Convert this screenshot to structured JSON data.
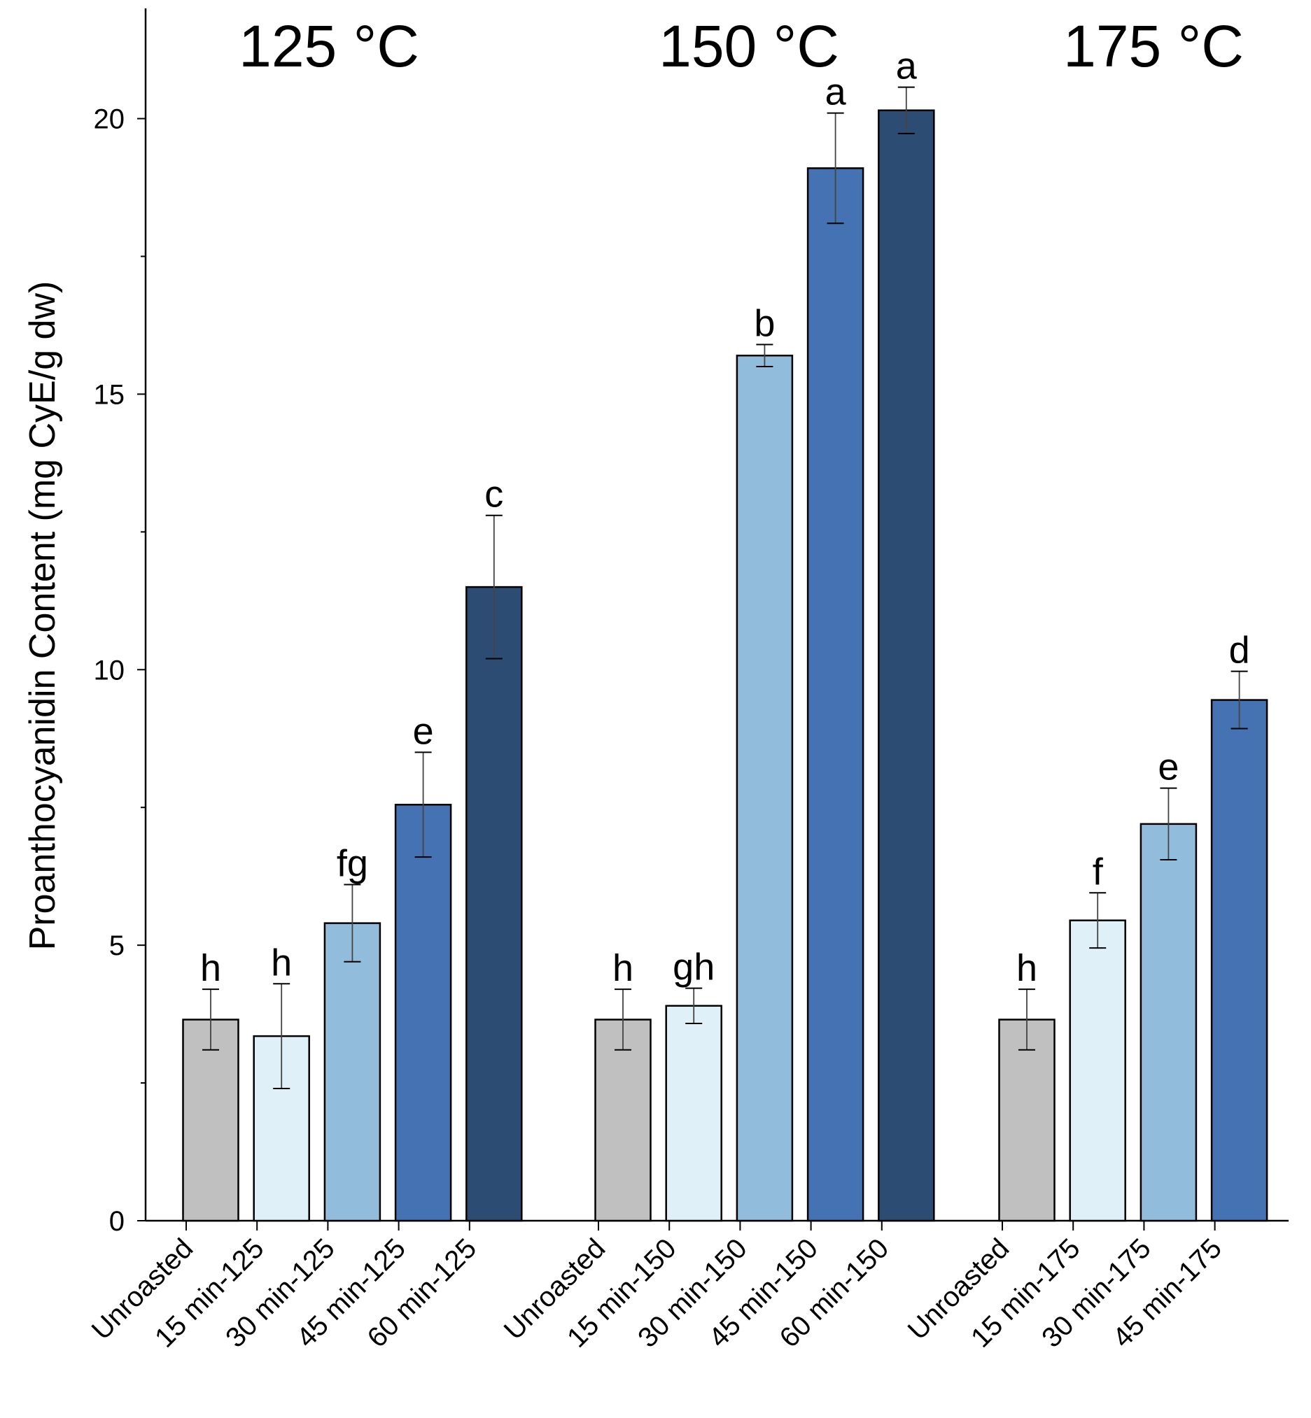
{
  "chart_data": {
    "type": "bar",
    "ylabel": "Proanthocyanidin Content (mg CyE/g dw)",
    "xlabel": "",
    "ylim": [
      0,
      22
    ],
    "yticks": [
      0,
      5,
      10,
      15,
      20
    ],
    "grid": false,
    "group_titles": [
      "125 °C",
      "150 °C",
      "175 °C"
    ],
    "groups": [
      {
        "title": "125 °C",
        "bars": [
          {
            "label": "Unroasted",
            "value": 3.65,
            "err": 0.55,
            "letter": "h",
            "color": "#c0c0c0"
          },
          {
            "label": "15 min-125",
            "value": 3.35,
            "err": 0.95,
            "letter": "h",
            "color": "#dff0f8"
          },
          {
            "label": "30 min-125",
            "value": 5.4,
            "err": 0.7,
            "letter": "fg",
            "color": "#91bcdc"
          },
          {
            "label": "45 min-125",
            "value": 7.55,
            "err": 0.95,
            "letter": "e",
            "color": "#4572b2"
          },
          {
            "label": "60 min-125",
            "value": 11.5,
            "err": 1.3,
            "letter": "c",
            "color": "#2d4c74"
          }
        ]
      },
      {
        "title": "150 °C",
        "bars": [
          {
            "label": "Unroasted",
            "value": 3.65,
            "err": 0.55,
            "letter": "h",
            "color": "#c0c0c0"
          },
          {
            "label": "15 min-150",
            "value": 3.9,
            "err": 0.32,
            "letter": "gh",
            "color": "#dff0f8"
          },
          {
            "label": "30 min-150",
            "value": 15.7,
            "err": 0.2,
            "letter": "b",
            "color": "#91bcdc"
          },
          {
            "label": "45 min-150",
            "value": 19.1,
            "err": 1.0,
            "letter": "a",
            "color": "#4572b2"
          },
          {
            "label": "60 min-150",
            "value": 20.15,
            "err": 0.42,
            "letter": "a",
            "color": "#2d4c74"
          }
        ]
      },
      {
        "title": "175 °C",
        "bars": [
          {
            "label": "Unroasted",
            "value": 3.65,
            "err": 0.55,
            "letter": "h",
            "color": "#c0c0c0"
          },
          {
            "label": "15 min-175",
            "value": 5.45,
            "err": 0.5,
            "letter": "f",
            "color": "#dff0f8"
          },
          {
            "label": "30 min-175",
            "value": 7.2,
            "err": 0.65,
            "letter": "e",
            "color": "#91bcdc"
          },
          {
            "label": "45 min-175",
            "value": 9.45,
            "err": 0.52,
            "letter": "d",
            "color": "#4572b2"
          }
        ]
      }
    ]
  }
}
